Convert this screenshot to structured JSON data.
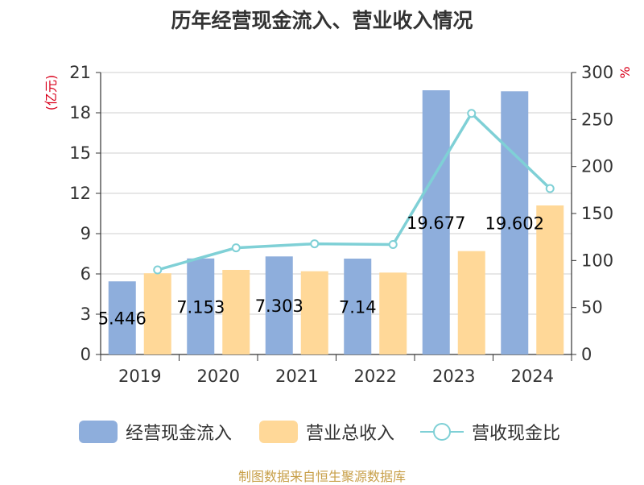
{
  "chart_data": {
    "type": "bar",
    "title": "历年经营现金流入、营业收入情况",
    "y_left_unit": "(亿元)",
    "y_right_unit": "%",
    "categories": [
      "2019",
      "2020",
      "2021",
      "2022",
      "2023",
      "2024"
    ],
    "y_left_ticks": [
      "0",
      "3",
      "6",
      "9",
      "12",
      "15",
      "18",
      "21"
    ],
    "y_right_ticks": [
      "0",
      "50",
      "100",
      "150",
      "200",
      "250",
      "300"
    ],
    "ylim_left": [
      0,
      21
    ],
    "ylim_right": [
      0,
      300
    ],
    "grid": true,
    "legend_position": "bottom",
    "series": [
      {
        "name": "经营现金流入",
        "type": "bar",
        "axis": "left",
        "color": "#8eaedc",
        "values": [
          5.446,
          7.153,
          7.303,
          7.14,
          19.677,
          19.602
        ],
        "data_labels": [
          "5.446",
          "7.153",
          "7.303",
          "7.14",
          "19.677",
          "19.602"
        ]
      },
      {
        "name": "营业总收入",
        "type": "bar",
        "axis": "left",
        "color": "#ffd898",
        "values": [
          6.05,
          6.3,
          6.2,
          6.1,
          7.7,
          11.1
        ]
      },
      {
        "name": "营收现金比",
        "type": "line",
        "axis": "right",
        "color": "#7fd0d6",
        "values": [
          90.0,
          113.5,
          117.8,
          117.0,
          256.5,
          176.6
        ]
      }
    ]
  },
  "source": "制图数据来自恒生聚源数据库"
}
